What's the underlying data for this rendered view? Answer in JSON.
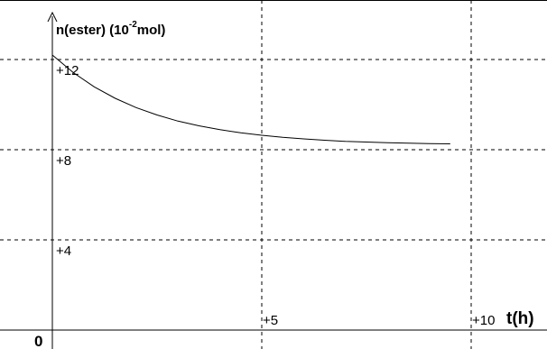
{
  "chart_data": {
    "type": "line",
    "title": "",
    "ylabel": {
      "prefix": "n(ester) (10",
      "exponent": "-2",
      "suffix": "mol)"
    },
    "xlabel": "t(h)",
    "origin_label": "0",
    "xlim": [
      0,
      11.2
    ],
    "ylim": [
      0,
      14
    ],
    "x_ticks": [
      {
        "value": 5,
        "label": "+5"
      },
      {
        "value": 10,
        "label": "+10"
      }
    ],
    "y_ticks": [
      {
        "value": 4,
        "label": "+4"
      },
      {
        "value": 8,
        "label": "+8"
      },
      {
        "value": 12,
        "label": "+12"
      }
    ],
    "grid": true,
    "series": [
      {
        "x": [
          0,
          0.5,
          1,
          1.5,
          2,
          2.5,
          3,
          3.5,
          4,
          4.5,
          5,
          5.5,
          6,
          6.5,
          7,
          7.5,
          8,
          8.5,
          9,
          9.5
        ],
        "y": [
          12.2,
          11.42,
          10.79,
          10.28,
          9.87,
          9.54,
          9.27,
          9.06,
          8.89,
          8.75,
          8.64,
          8.55,
          8.48,
          8.42,
          8.37,
          8.34,
          8.31,
          8.29,
          8.27,
          8.26
        ],
        "line_style": "solid"
      },
      {
        "x": [
          7.2,
          9.5
        ],
        "y": [
          8.0,
          8.0
        ],
        "line_style": "dashed"
      }
    ],
    "colors": {
      "curve": "#000000",
      "grid": "#000000",
      "axes": "#000000"
    }
  }
}
